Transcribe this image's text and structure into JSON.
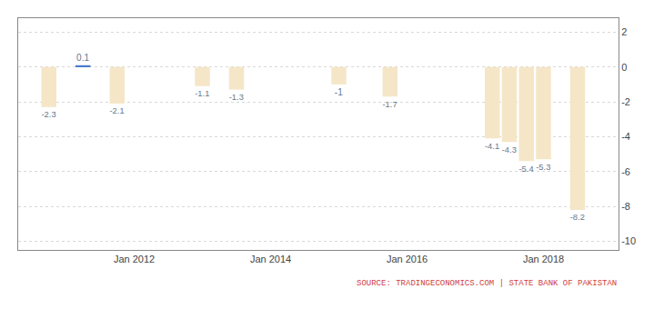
{
  "chart_data": {
    "type": "bar",
    "x": [
      2010.75,
      2011.25,
      2011.75,
      2013.0,
      2013.5,
      2015.0,
      2015.75,
      2017.25,
      2017.5,
      2017.75,
      2018.0,
      2018.5
    ],
    "values": [
      -2.3,
      0.1,
      -2.1,
      -1.1,
      -1.3,
      -1.0,
      -1.7,
      -4.1,
      -4.3,
      -5.4,
      -5.3,
      -8.2
    ],
    "colors": [
      "#f5e6c8",
      "#4a7cc9",
      "#f5e6c8",
      "#f5e6c8",
      "#f5e6c8",
      "#f5e6c8",
      "#f5e6c8",
      "#f5e6c8",
      "#f5e6c8",
      "#f5e6c8",
      "#f5e6c8",
      "#f5e6c8"
    ],
    "data_labels": true,
    "xlim": [
      2010.3,
      2019.1
    ],
    "xticks": [
      {
        "value": 2012,
        "label": "Jan 2012"
      },
      {
        "value": 2014,
        "label": "Jan 2014"
      },
      {
        "value": 2016,
        "label": "Jan 2016"
      },
      {
        "value": 2018,
        "label": "Jan 2018"
      }
    ],
    "ylim": [
      -10.5,
      2.8
    ],
    "yticks": [
      2,
      0,
      -2,
      -4,
      -6,
      -8,
      -10
    ],
    "grid": true,
    "annotations": [
      "SOURCE: TRADINGECONOMICS.COM | STATE BANK OF PAKISTAN"
    ]
  }
}
